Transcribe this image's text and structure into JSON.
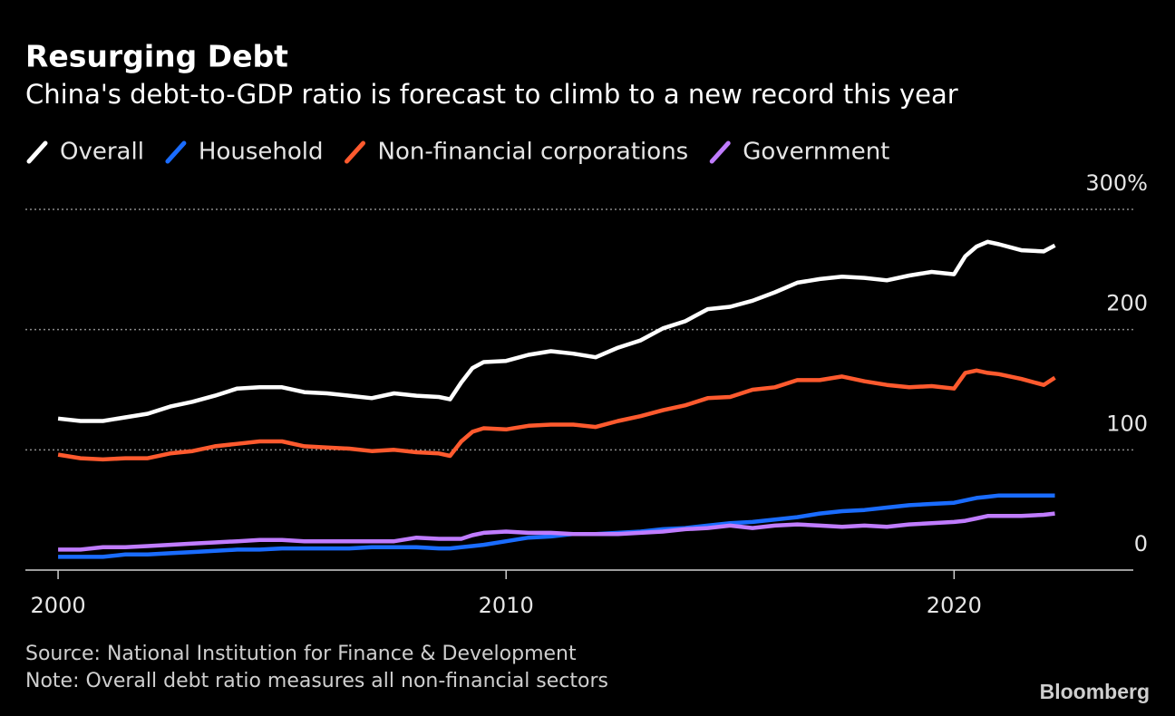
{
  "chart_data": {
    "type": "line",
    "title": "Resurging Debt",
    "subtitle": "China's debt-to-GDP ratio is forecast to climb to a new record this year",
    "source": "Source: National Institution for Finance & Development",
    "note": "Note: Overall debt ratio measures all non-financial sectors",
    "brand": "Bloomberg",
    "x": [
      2000,
      2000.5,
      2001,
      2001.5,
      2002,
      2002.5,
      2003,
      2003.5,
      2004,
      2004.5,
      2005,
      2005.5,
      2006,
      2006.5,
      2007,
      2007.5,
      2008,
      2008.5,
      2008.75,
      2009,
      2009.25,
      2009.5,
      2010,
      2010.5,
      2011,
      2011.5,
      2012,
      2012.5,
      2013,
      2013.5,
      2014,
      2014.5,
      2015,
      2015.5,
      2016,
      2016.5,
      2017,
      2017.5,
      2018,
      2018.5,
      2019,
      2019.5,
      2020,
      2020.25,
      2020.5,
      2020.75,
      2021,
      2021.5,
      2022,
      2022.25
    ],
    "series": [
      {
        "name": "Overall",
        "color": "#ffffff",
        "values": [
          126,
          124,
          124,
          127,
          130,
          136,
          140,
          145,
          151,
          152,
          152,
          148,
          147,
          145,
          143,
          147,
          145,
          144,
          142,
          156,
          168,
          173,
          174,
          179,
          182,
          180,
          177,
          185,
          191,
          201,
          207,
          217,
          219,
          224,
          231,
          239,
          242,
          244,
          243,
          241,
          245,
          248,
          246,
          261,
          269,
          273,
          271,
          266,
          265,
          270
        ]
      },
      {
        "name": "Household",
        "color": "#1a6cff",
        "values": [
          11,
          11,
          11,
          13,
          13,
          14,
          15,
          16,
          17,
          17,
          18,
          18,
          18,
          18,
          19,
          19,
          19,
          18,
          18,
          19,
          20,
          21,
          24,
          27,
          28,
          30,
          30,
          31,
          32,
          34,
          35,
          37,
          39,
          40,
          42,
          44,
          47,
          49,
          50,
          52,
          54,
          55,
          56,
          58,
          60,
          61,
          62,
          62,
          62,
          62
        ]
      },
      {
        "name": "Non-financial corporations",
        "color": "#ff5a2e",
        "values": [
          96,
          93,
          92,
          93,
          93,
          97,
          99,
          103,
          105,
          107,
          107,
          103,
          102,
          101,
          99,
          100,
          98,
          97,
          95,
          107,
          115,
          118,
          117,
          120,
          121,
          121,
          119,
          124,
          128,
          133,
          137,
          143,
          144,
          150,
          152,
          158,
          158,
          161,
          157,
          154,
          152,
          153,
          151,
          164,
          166,
          164,
          163,
          159,
          154,
          160
        ]
      },
      {
        "name": "Government",
        "color": "#c07cff",
        "values": [
          17,
          17,
          19,
          19,
          20,
          21,
          22,
          23,
          24,
          25,
          25,
          24,
          24,
          24,
          24,
          24,
          27,
          26,
          26,
          26,
          29,
          31,
          32,
          31,
          31,
          30,
          30,
          30,
          31,
          32,
          34,
          35,
          37,
          35,
          37,
          38,
          37,
          36,
          37,
          36,
          38,
          39,
          40,
          41,
          43,
          45,
          45,
          45,
          46,
          47
        ]
      }
    ],
    "xlim": [
      1999.27,
      2024
    ],
    "xticks": [
      2000,
      2010,
      2020
    ],
    "ylim": [
      0,
      300
    ],
    "yticks": [
      0,
      100,
      200,
      {
        "value": 300,
        "label": "300%"
      }
    ],
    "grid": true
  }
}
